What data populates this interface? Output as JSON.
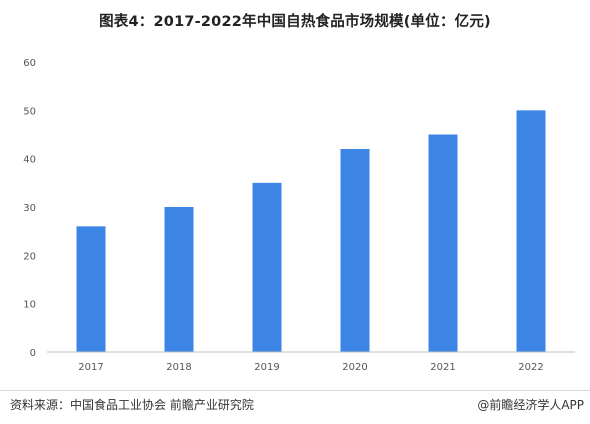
{
  "title": "图表4：2017-2022年中国自热食品市场规模(单位：亿元)",
  "footer": {
    "source": "资料来源：中国食品工业协会 前瞻产业研究院",
    "credit": "@前瞻经济学人APP"
  },
  "colors": {
    "bar": "#3d85e4",
    "axis": "#bfbfbf"
  },
  "chart_data": {
    "type": "bar",
    "title": "图表4：2017-2022年中国自热食品市场规模(单位：亿元)",
    "categories": [
      "2017",
      "2018",
      "2019",
      "2020",
      "2021",
      "2022"
    ],
    "values": [
      26,
      30,
      35,
      42,
      45,
      50
    ],
    "ylim": [
      0,
      60
    ],
    "yticks": [
      0,
      10,
      20,
      30,
      40,
      50,
      60
    ],
    "xlabel": "",
    "ylabel": "",
    "grid": false,
    "legend": "none"
  }
}
